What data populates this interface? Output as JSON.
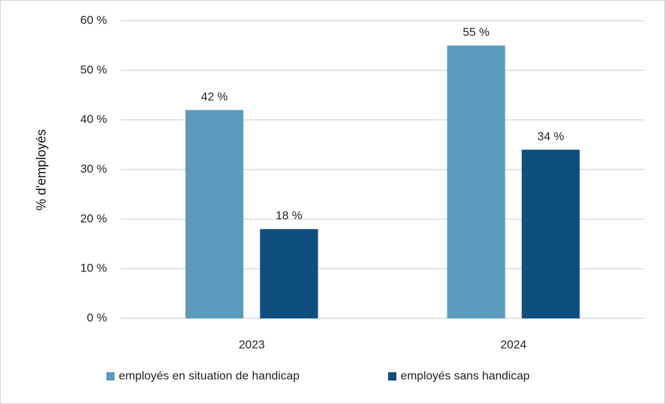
{
  "chart_data": {
    "type": "bar",
    "categories": [
      "2023",
      "2024"
    ],
    "series": [
      {
        "name": "employés en situation de handicap",
        "values": [
          42,
          55
        ],
        "labels": [
          "42 %",
          "55 %"
        ],
        "color": "#5b9bbd"
      },
      {
        "name": "employés sans handicap",
        "values": [
          18,
          34
        ],
        "labels": [
          "18 %",
          "34 %"
        ],
        "color": "#0e4f80"
      }
    ],
    "ylabel": "% d'employés",
    "ylim": [
      0,
      60
    ],
    "yticks": [
      0,
      10,
      20,
      30,
      40,
      50,
      60
    ],
    "ytick_labels": [
      "0 %",
      "10 %",
      "20 %",
      "30 %",
      "40 %",
      "50 %",
      "60 %"
    ],
    "grid": true,
    "legend_position": "bottom"
  }
}
